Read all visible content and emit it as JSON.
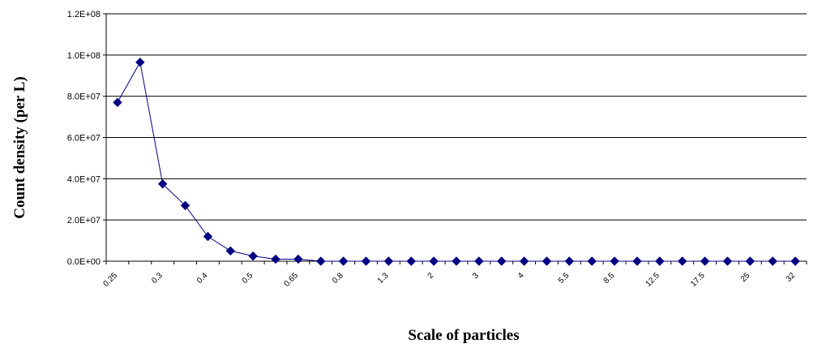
{
  "chart_data": {
    "type": "line",
    "xlabel": "Scale of particles",
    "ylabel": "Count density (per L)",
    "ylim": [
      0,
      120000000
    ],
    "yticks": [
      "0.0E+00",
      "2.0E+07",
      "4.0E+07",
      "6.0E+07",
      "8.0E+07",
      "1.0E+08",
      "1.2E+08"
    ],
    "x_tick_labels": [
      "0.25",
      "0.3",
      "0.4",
      "0.5",
      "0.65",
      "0.8",
      "1.3",
      "2",
      "3",
      "4",
      "5.5",
      "8.5",
      "12.5",
      "17.5",
      "25",
      "32"
    ],
    "grid": "horizontal",
    "legend": "none",
    "series_color": "#000080",
    "values": [
      77000000,
      96500000,
      37500000,
      27000000,
      12000000,
      5000000,
      2500000,
      1000000,
      1000000,
      0,
      0,
      0,
      0,
      0,
      0,
      0,
      0,
      0,
      0,
      0,
      0,
      0,
      0,
      0,
      0,
      0,
      0,
      0,
      0,
      0,
      0
    ]
  }
}
